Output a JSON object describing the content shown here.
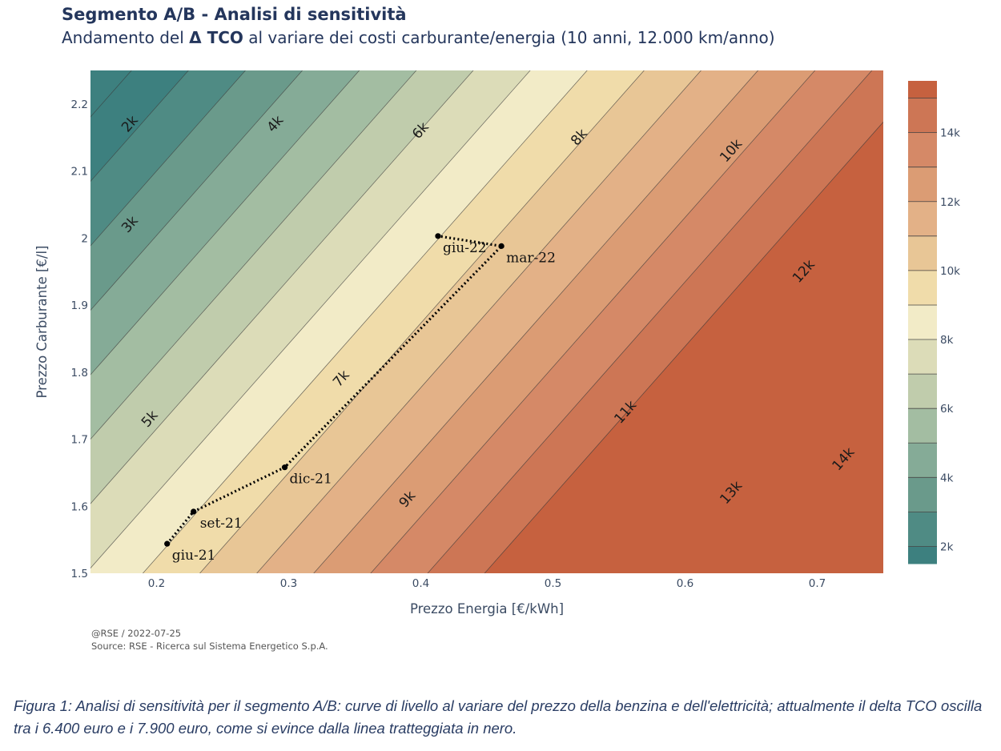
{
  "chart_data": {
    "type": "contour",
    "title": "Segmento A/B - Analisi di sensitività",
    "subtitle_pre": "Andamento del ",
    "subtitle_bold": "Δ TCO",
    "subtitle_post": " al variare dei costi carburante/energia (10 anni, 12.000 km/anno)",
    "xlabel": "Prezzo Energia [€/kWh]",
    "ylabel": "Prezzo Carburante [€/l]",
    "xlim": [
      0.15,
      0.75
    ],
    "ylim": [
      1.5,
      2.25
    ],
    "x_ticks": [
      0.2,
      0.3,
      0.4,
      0.5,
      0.6,
      0.7
    ],
    "x_tick_labels": [
      "0.2",
      "0.3",
      "0.4",
      "0.5",
      "0.6",
      "0.7"
    ],
    "y_ticks": [
      1.5,
      1.6,
      1.7,
      1.8,
      1.9,
      2.0,
      2.1,
      2.2
    ],
    "y_tick_labels": [
      "1.5",
      "1.6",
      "1.7",
      "1.8",
      "1.9",
      "2",
      "2.1",
      "2.2"
    ],
    "contour_levels": [
      1000,
      2000,
      3000,
      4000,
      5000,
      6000,
      7000,
      8000,
      9000,
      10000,
      11000,
      12000,
      13000,
      14000,
      15000
    ],
    "contour_labels": [
      {
        "text": "2k",
        "x": 0.18,
        "y": 2.17
      },
      {
        "text": "3k",
        "x": 0.18,
        "y": 2.02
      },
      {
        "text": "4k",
        "x": 0.29,
        "y": 2.17
      },
      {
        "text": "5k",
        "x": 0.195,
        "y": 1.73
      },
      {
        "text": "6k",
        "x": 0.4,
        "y": 2.16
      },
      {
        "text": "7k",
        "x": 0.34,
        "y": 1.79
      },
      {
        "text": "8k",
        "x": 0.52,
        "y": 2.15
      },
      {
        "text": "9k",
        "x": 0.39,
        "y": 1.61
      },
      {
        "text": "10k",
        "x": 0.635,
        "y": 2.13
      },
      {
        "text": "11k",
        "x": 0.555,
        "y": 1.74
      },
      {
        "text": "12k",
        "x": 0.69,
        "y": 1.95
      },
      {
        "text": "13k",
        "x": 0.635,
        "y": 1.62
      },
      {
        "text": "14k",
        "x": 0.72,
        "y": 1.67
      }
    ],
    "colorbar": {
      "range": [
        1500,
        15500
      ],
      "ticks": [
        2000,
        4000,
        6000,
        8000,
        10000,
        12000,
        14000
      ],
      "tick_labels": [
        "2k",
        "4k",
        "6k",
        "8k",
        "10k",
        "12k",
        "14k"
      ],
      "band_colors": [
        "#3d807f",
        "#4f8b84",
        "#6a9a8b",
        "#85ab97",
        "#a3bda2",
        "#c0ccac",
        "#dcdcb8",
        "#f2ebc7",
        "#f0dcaa",
        "#e8c696",
        "#e3b187",
        "#db9c74",
        "#d58967",
        "#cd7655",
        "#c6613f"
      ]
    },
    "series": [
      {
        "points": [
          {
            "label": "giu-21",
            "x": 0.208,
            "y": 1.544
          },
          {
            "label": "set-21",
            "x": 0.228,
            "y": 1.592
          },
          {
            "label": "dic-21",
            "x": 0.297,
            "y": 1.658
          },
          {
            "label": "mar-22",
            "x": 0.461,
            "y": 1.988
          },
          {
            "label": "giu-22",
            "x": 0.413,
            "y": 2.003
          }
        ]
      }
    ]
  },
  "footer": {
    "credit": "@RSE / 2022-07-25",
    "source": "Source: RSE - Ricerca sul Sistema Energetico S.p.A."
  },
  "caption": "Figura 1: Analisi di sensitività per il segmento A/B: curve di livello al variare del prezzo della benzina e dell'elettricità; attualmente il delta TCO oscilla tra i 6.400 euro e i 7.900 euro, come si evince dalla linea tratteggiata in nero."
}
